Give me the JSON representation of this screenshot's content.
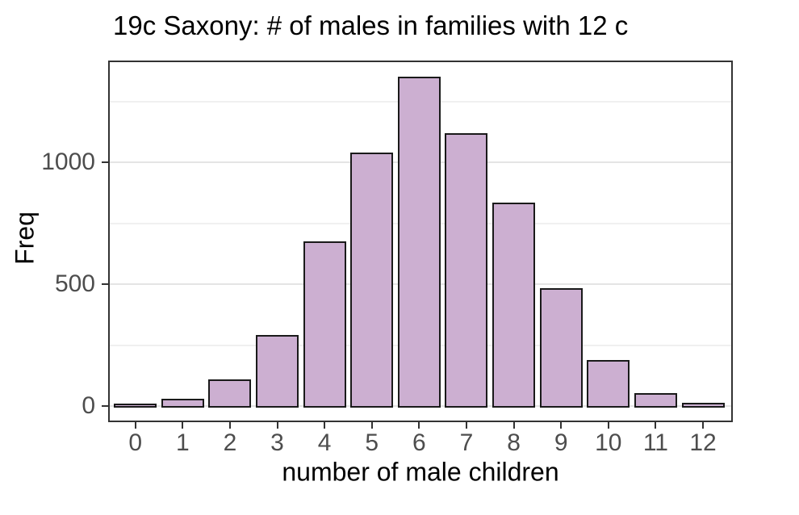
{
  "chart_data": {
    "type": "bar",
    "title": "19c Saxony: # of males in families with 12 c",
    "xlabel": "number of male children",
    "ylabel": "Freq",
    "categories": [
      0,
      1,
      2,
      3,
      4,
      5,
      6,
      7,
      8,
      9,
      10,
      11,
      12
    ],
    "values": [
      3,
      24,
      104,
      286,
      670,
      1033,
      1343,
      1112,
      829,
      478,
      181,
      45,
      7
    ],
    "y_ticks": [
      0,
      500,
      1000
    ],
    "y_minor_ticks": [
      250,
      750,
      1250
    ],
    "ylim": [
      -67,
      1410
    ],
    "grid": "horizontal major and minor gridlines",
    "legend": "none",
    "colors": {
      "bar_fill": "#CCAFD1",
      "bar_border": "#1A1A1A",
      "grid_major": "#E4E4E4",
      "grid_minor": "#F0F0F0",
      "panel_border": "#333333",
      "tick_mark": "#333333",
      "tick_label": "#4D4D4D",
      "title_text": "#000000",
      "background": "#FFFFFF"
    }
  }
}
